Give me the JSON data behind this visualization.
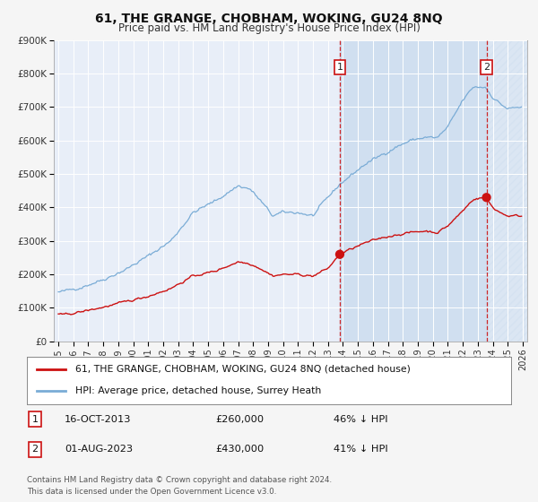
{
  "title": "61, THE GRANGE, CHOBHAM, WOKING, GU24 8NQ",
  "subtitle": "Price paid vs. HM Land Registry's House Price Index (HPI)",
  "bg_color": "#f5f5f5",
  "plot_bg_color": "#e8eef8",
  "hpi_color": "#7aacd6",
  "price_color": "#cc1111",
  "grid_color": "#ffffff",
  "shade_color": "#d0dff0",
  "ylim": [
    0,
    900000
  ],
  "xlim_start": 1994.7,
  "xlim_end": 2026.3,
  "yticks": [
    0,
    100000,
    200000,
    300000,
    400000,
    500000,
    600000,
    700000,
    800000,
    900000
  ],
  "ytick_labels": [
    "£0",
    "£100K",
    "£200K",
    "£300K",
    "£400K",
    "£500K",
    "£600K",
    "£700K",
    "£800K",
    "£900K"
  ],
  "xticks": [
    1995,
    1996,
    1997,
    1998,
    1999,
    2000,
    2001,
    2002,
    2003,
    2004,
    2005,
    2006,
    2007,
    2008,
    2009,
    2010,
    2011,
    2012,
    2013,
    2014,
    2015,
    2016,
    2017,
    2018,
    2019,
    2020,
    2021,
    2022,
    2023,
    2024,
    2025,
    2026
  ],
  "sale1_x": 2013.79,
  "sale1_y": 260000,
  "sale2_x": 2023.58,
  "sale2_y": 430000,
  "legend_label1": "61, THE GRANGE, CHOBHAM, WOKING, GU24 8NQ (detached house)",
  "legend_label2": "HPI: Average price, detached house, Surrey Heath",
  "note1_num": "1",
  "note1_date": "16-OCT-2013",
  "note1_price": "£260,000",
  "note1_hpi": "46% ↓ HPI",
  "note2_num": "2",
  "note2_date": "01-AUG-2023",
  "note2_price": "£430,000",
  "note2_hpi": "41% ↓ HPI",
  "footer1": "Contains HM Land Registry data © Crown copyright and database right 2024.",
  "footer2": "This data is licensed under the Open Government Licence v3.0."
}
